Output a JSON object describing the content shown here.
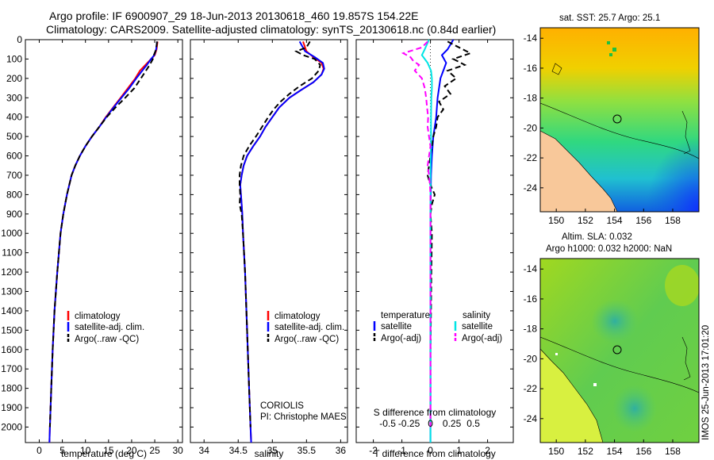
{
  "header": {
    "line1": "Argo profile: IF 6900907_29 18-Jun-2013 20130618_460 19.857S 154.22E",
    "line2": "Climatology: CARS2009. Satellite-adjusted climatology: synTS_20130618.nc (0.84d earlier)"
  },
  "colors": {
    "climatology": "#ff0000",
    "satellite": "#0000ff",
    "argo": "#000000",
    "salinity_sat": "#00e5e5",
    "salinity_argo": "#ff00ff"
  },
  "depth_axis": {
    "ticks": [
      "0",
      "100",
      "200",
      "300",
      "400",
      "500",
      "600",
      "700",
      "800",
      "900",
      "1000",
      "1100",
      "1200",
      "1300",
      "1400",
      "1500",
      "1600",
      "1700",
      "1800",
      "1900",
      "2000"
    ]
  },
  "chart_data": [
    {
      "type": "line",
      "id": "temperature",
      "xlabel": "temperature (deg C)",
      "xlim": [
        -3,
        31
      ],
      "ylim": [
        0,
        2080
      ],
      "x_ticks": [
        "0",
        "5",
        "10",
        "15",
        "20",
        "25",
        "30"
      ],
      "legend": {
        "items": [
          "climatology",
          "satellite-adj. clim.",
          "Argo(..raw -QC)"
        ]
      },
      "series": [
        {
          "name": "climatology",
          "color": "#ff0000",
          "dash": "",
          "depth": [
            10,
            50,
            80,
            100,
            130,
            160,
            200,
            250,
            300,
            350,
            400,
            450,
            500,
            550,
            600,
            650,
            700,
            800,
            900,
            1000,
            1200,
            1400,
            1600,
            1800,
            2000,
            2080
          ],
          "values": [
            25.6,
            25.4,
            25.0,
            24.2,
            23.0,
            21.8,
            20.8,
            19.2,
            17.6,
            16.0,
            14.4,
            13.0,
            11.4,
            10.0,
            8.8,
            7.8,
            7.0,
            6.0,
            5.2,
            4.6,
            3.9,
            3.3,
            2.9,
            2.6,
            2.3,
            2.2
          ]
        },
        {
          "name": "satellite-adj. clim.",
          "color": "#0000ff",
          "dash": "",
          "depth": [
            10,
            50,
            80,
            100,
            130,
            160,
            200,
            250,
            300,
            350,
            400,
            450,
            500,
            550,
            600,
            650,
            700,
            800,
            900,
            1000,
            1200,
            1400,
            1600,
            1800,
            2000,
            2080
          ],
          "values": [
            25.5,
            25.3,
            24.9,
            24.2,
            23.3,
            22.3,
            21.0,
            19.5,
            17.8,
            16.1,
            14.5,
            13.0,
            11.4,
            10.0,
            8.8,
            7.8,
            7.0,
            6.0,
            5.2,
            4.6,
            3.9,
            3.3,
            2.9,
            2.6,
            2.3,
            2.2
          ]
        },
        {
          "name": "Argo(..raw -QC)",
          "color": "#000000",
          "dash": "7,4",
          "depth": [
            10,
            50,
            80,
            100,
            130,
            160,
            200,
            250,
            300,
            350,
            400,
            450,
            500,
            550,
            600,
            650,
            700,
            800,
            900,
            1000,
            1200,
            1400,
            1600,
            1800,
            2000
          ],
          "values": [
            25.5,
            25.3,
            24.8,
            24.6,
            23.9,
            23.1,
            22.0,
            20.6,
            18.6,
            16.5,
            14.6,
            13.0,
            11.4,
            10.0,
            8.8,
            7.8,
            7.0,
            6.0,
            5.2,
            4.6,
            3.9,
            3.3,
            2.9,
            2.6,
            2.3
          ]
        }
      ]
    },
    {
      "type": "line",
      "id": "salinity",
      "xlabel": "salinity",
      "xlim": [
        33.8,
        36.1
      ],
      "ylim": [
        0,
        2080
      ],
      "x_ticks": [
        "34",
        "34.5",
        "35",
        "35.5",
        "36"
      ],
      "legend": {
        "items": [
          "climatology",
          "satellite-adj. clim.",
          "Argo(..raw -QC)"
        ]
      },
      "annotations": [
        "CORIOLIS",
        "PI: Christophe MAES"
      ],
      "series": [
        {
          "name": "climatology",
          "color": "#ff0000",
          "dash": "",
          "depth": [
            10,
            60,
            90,
            120,
            150,
            180,
            220,
            260,
            300,
            350,
            400,
            450,
            500,
            550,
            600,
            650,
            700,
            750,
            800,
            850,
            900,
            1000,
            1200,
            1400,
            1600,
            1800,
            2000,
            2080
          ],
          "values": [
            35.45,
            35.5,
            35.6,
            35.72,
            35.75,
            35.72,
            35.6,
            35.42,
            35.25,
            35.1,
            35.0,
            34.9,
            34.82,
            34.72,
            34.63,
            34.58,
            34.55,
            34.53,
            34.54,
            34.55,
            34.56,
            34.57,
            34.6,
            34.62,
            34.64,
            34.66,
            34.68,
            34.69
          ]
        },
        {
          "name": "satellite-adj. clim.",
          "color": "#0000ff",
          "dash": "",
          "depth": [
            10,
            60,
            90,
            120,
            150,
            180,
            220,
            260,
            300,
            350,
            400,
            450,
            500,
            550,
            600,
            650,
            700,
            750,
            800,
            850,
            900,
            1000,
            1200,
            1400,
            1600,
            1800,
            2000,
            2080
          ],
          "values": [
            35.4,
            35.48,
            35.62,
            35.74,
            35.76,
            35.72,
            35.6,
            35.42,
            35.25,
            35.1,
            35.0,
            34.9,
            34.82,
            34.72,
            34.63,
            34.58,
            34.55,
            34.53,
            34.54,
            34.55,
            34.56,
            34.57,
            34.6,
            34.62,
            34.64,
            34.66,
            34.68,
            34.69
          ]
        },
        {
          "name": "Argo(..raw -QC)",
          "color": "#000000",
          "dash": "7,4",
          "depth": [
            10,
            40,
            60,
            80,
            100,
            130,
            160,
            200,
            240,
            280,
            320,
            360,
            400,
            450,
            500,
            550,
            600,
            650,
            700,
            750,
            800,
            850,
            900,
            1000,
            1200,
            1400,
            1600,
            1800,
            2000
          ],
          "values": [
            35.55,
            35.5,
            35.35,
            35.45,
            35.62,
            35.7,
            35.68,
            35.58,
            35.4,
            35.25,
            35.12,
            35.02,
            34.94,
            34.85,
            34.76,
            34.66,
            34.58,
            34.54,
            34.52,
            34.52,
            34.53,
            34.52,
            34.55,
            34.57,
            34.6,
            34.62,
            34.64,
            34.66,
            34.68
          ]
        }
      ]
    },
    {
      "type": "line",
      "id": "differences",
      "xlabel": "T difference from climatology",
      "xlabel_top": "S difference from climatology",
      "xlim": [
        -2.6,
        2.9
      ],
      "ylim": [
        0,
        2080
      ],
      "x_ticks": [
        "-2",
        "-1",
        "0",
        "1",
        "2"
      ],
      "top_ticks": [
        {
          "label": "-0.5",
          "t_pos": -1.5
        },
        {
          "label": "-0.25",
          "t_pos": -0.75
        },
        {
          "label": "0",
          "t_pos": 0
        },
        {
          "label": "0.25",
          "t_pos": 0.75
        },
        {
          "label": "0.5",
          "t_pos": 1.5
        }
      ],
      "legend": {
        "temperature_title": "temperature",
        "salinity_title": "salinity",
        "items": [
          "satellite",
          "Argo(-adj)",
          "satellite",
          "Argo(-adj)"
        ]
      },
      "series": [
        {
          "name": "T satellite",
          "color": "#0000ff",
          "dash": "",
          "depth": [
            0,
            50,
            80,
            120,
            160,
            200,
            250,
            300,
            400,
            500,
            600,
            700,
            800,
            900,
            1000,
            1200,
            1500,
            2000,
            2080
          ],
          "values": [
            0.8,
            0.6,
            0.4,
            0.55,
            0.45,
            0.35,
            0.3,
            0.25,
            0.2,
            0.1,
            0.05,
            0.02,
            0.01,
            0.0,
            0.0,
            0.0,
            0.0,
            0.0,
            0.0
          ]
        },
        {
          "name": "T Argo(-adj)",
          "color": "#000000",
          "dash": "7,4",
          "depth": [
            10,
            40,
            70,
            100,
            130,
            160,
            200,
            240,
            280,
            320,
            360,
            400,
            450,
            500,
            550,
            600,
            650,
            700,
            750,
            800,
            850,
            900,
            1000,
            1200,
            1400,
            1600,
            1800,
            2000
          ],
          "values": [
            0.6,
            1.0,
            1.4,
            0.8,
            1.2,
            0.6,
            0.9,
            0.5,
            0.7,
            0.3,
            0.45,
            0.25,
            0.2,
            0.1,
            0.05,
            0.0,
            -0.05,
            -0.1,
            0.0,
            0.15,
            0.05,
            0.0,
            0.05,
            0.03,
            0.02,
            0.0,
            0.0,
            0.0
          ]
        },
        {
          "name": "S satellite",
          "color": "#00e5e5",
          "dash": "",
          "depth": [
            0,
            50,
            80,
            120,
            160,
            200,
            250,
            300,
            400,
            500,
            600,
            700,
            800,
            900,
            1000,
            1200,
            1500,
            2000,
            2080
          ],
          "values": [
            -0.05,
            -0.2,
            -0.3,
            -0.1,
            0.02,
            0.05,
            0.05,
            0.03,
            0.02,
            0.02,
            0.01,
            0.0,
            0.0,
            0.0,
            0.0,
            0.0,
            0.0,
            0.0,
            0.0
          ]
        },
        {
          "name": "S Argo(-adj)",
          "color": "#ff00ff",
          "dash": "7,4",
          "depth": [
            10,
            40,
            70,
            90,
            110,
            130,
            160,
            200,
            250,
            300,
            350,
            400,
            450,
            500,
            550,
            600,
            650,
            700,
            750,
            800,
            900,
            1000,
            1200,
            1500,
            2000
          ],
          "values": [
            -0.1,
            -0.3,
            -0.95,
            -0.7,
            -0.6,
            -0.4,
            -0.55,
            -0.3,
            -0.2,
            -0.15,
            -0.12,
            -0.08,
            -0.1,
            -0.05,
            0.0,
            -0.05,
            -0.1,
            -0.05,
            -0.02,
            0.0,
            0.0,
            0.0,
            0.0,
            0.0,
            0.0
          ]
        }
      ]
    }
  ],
  "maps": {
    "sst": {
      "title": "sat. SST: 25.7 Argo: 25.1",
      "lat_ticks": [
        "-14",
        "-16",
        "-18",
        "-20",
        "-22",
        "-24"
      ],
      "lon_ticks": [
        "150",
        "152",
        "154",
        "156",
        "158"
      ]
    },
    "sla": {
      "title1": "Altim. SLA: 0.032",
      "title2": "Argo h1000: 0.032 h2000: NaN",
      "lat_ticks": [
        "-14",
        "-16",
        "-18",
        "-20",
        "-22",
        "-24"
      ],
      "lon_ticks": [
        "150",
        "152",
        "154",
        "156",
        "158"
      ]
    }
  },
  "footer": {
    "credit": "IMOS 25-Jun-2013 17:01:20"
  }
}
